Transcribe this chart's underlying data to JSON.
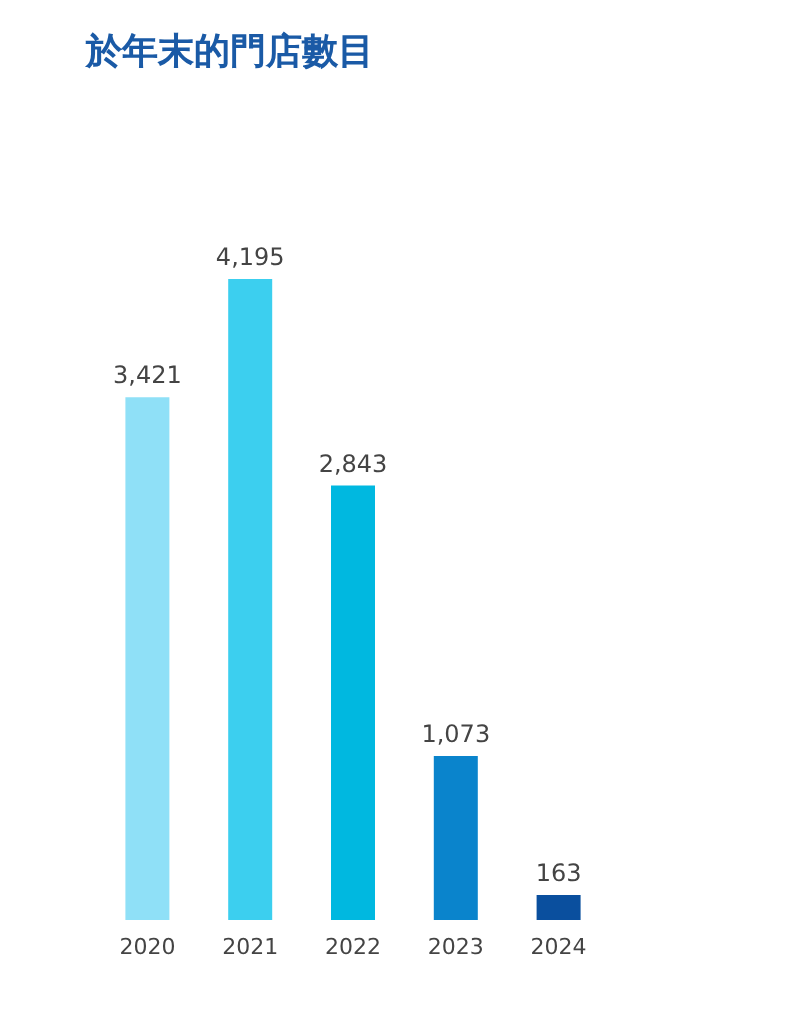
{
  "chart_data": {
    "type": "bar",
    "title": "於年末的門店數目",
    "categories": [
      "2020",
      "2021",
      "2022",
      "2023",
      "2024"
    ],
    "values": [
      3421,
      4195,
      2843,
      1073,
      163
    ],
    "value_labels": [
      "3,421",
      "4,195",
      "2,843",
      "1,073",
      "163"
    ],
    "colors": [
      "#8fe0f7",
      "#3ccfef",
      "#00b8e0",
      "#0a84cc",
      "#0a4f9e"
    ]
  }
}
